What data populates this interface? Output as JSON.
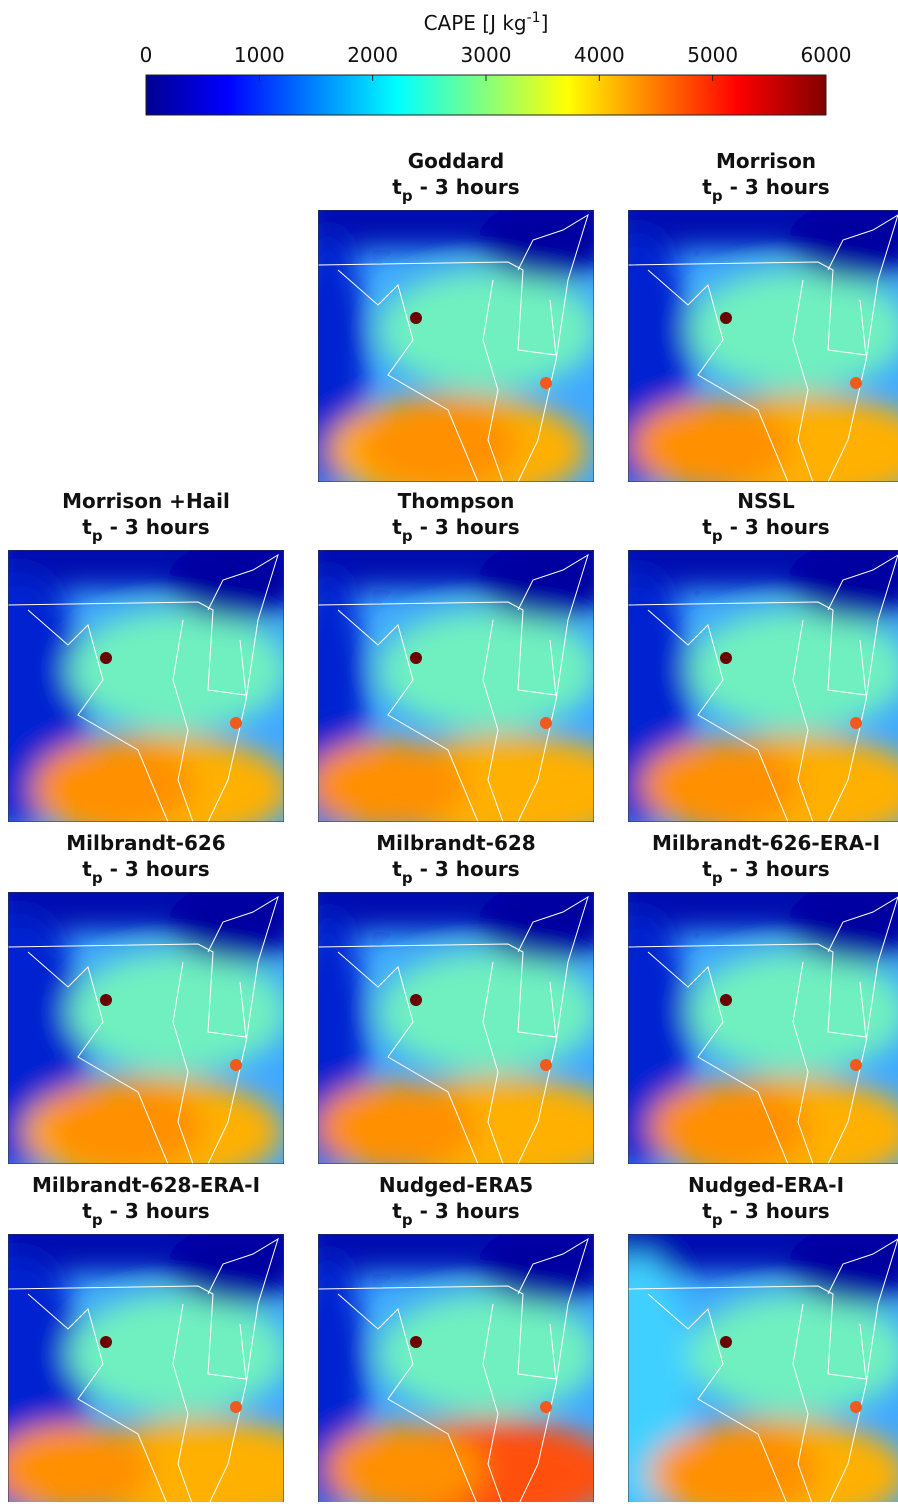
{
  "colorbar": {
    "label": {
      "base": "CAPE [J kg",
      "sup": "-1",
      "end": "]"
    },
    "lim": [
      0,
      6000
    ],
    "ticks": [
      0,
      1000,
      2000,
      3000,
      4000,
      5000,
      6000
    ]
  },
  "panels": [
    {
      "title": "Goddard",
      "subtitle": {
        "base": "t",
        "sub": "p",
        "rest": " - 3 hours"
      }
    },
    {
      "title": "Morrison",
      "subtitle": {
        "base": "t",
        "sub": "p",
        "rest": " - 3 hours"
      }
    },
    {
      "title": "Morrison +Hail",
      "subtitle": {
        "base": "t",
        "sub": "p",
        "rest": " - 3 hours"
      }
    },
    {
      "title": "Thompson",
      "subtitle": {
        "base": "t",
        "sub": "p",
        "rest": " - 3 hours"
      }
    },
    {
      "title": "NSSL",
      "subtitle": {
        "base": "t",
        "sub": "p",
        "rest": " - 3 hours"
      }
    },
    {
      "title": "Milbrandt-626",
      "subtitle": {
        "base": "t",
        "sub": "p",
        "rest": " - 3 hours"
      }
    },
    {
      "title": "Milbrandt-628",
      "subtitle": {
        "base": "t",
        "sub": "p",
        "rest": " - 3 hours"
      }
    },
    {
      "title": "Milbrandt-626-ERA-I",
      "subtitle": {
        "base": "t",
        "sub": "p",
        "rest": " - 3 hours"
      }
    },
    {
      "title": "Milbrandt-628-ERA-I",
      "subtitle": {
        "base": "t",
        "sub": "p",
        "rest": " - 3 hours"
      }
    },
    {
      "title": "Nudged-ERA5",
      "subtitle": {
        "base": "t",
        "sub": "p",
        "rest": " - 3 hours"
      }
    },
    {
      "title": "Nudged-ERA-I",
      "subtitle": {
        "base": "t",
        "sub": "p",
        "rest": " - 3 hours"
      }
    }
  ]
}
